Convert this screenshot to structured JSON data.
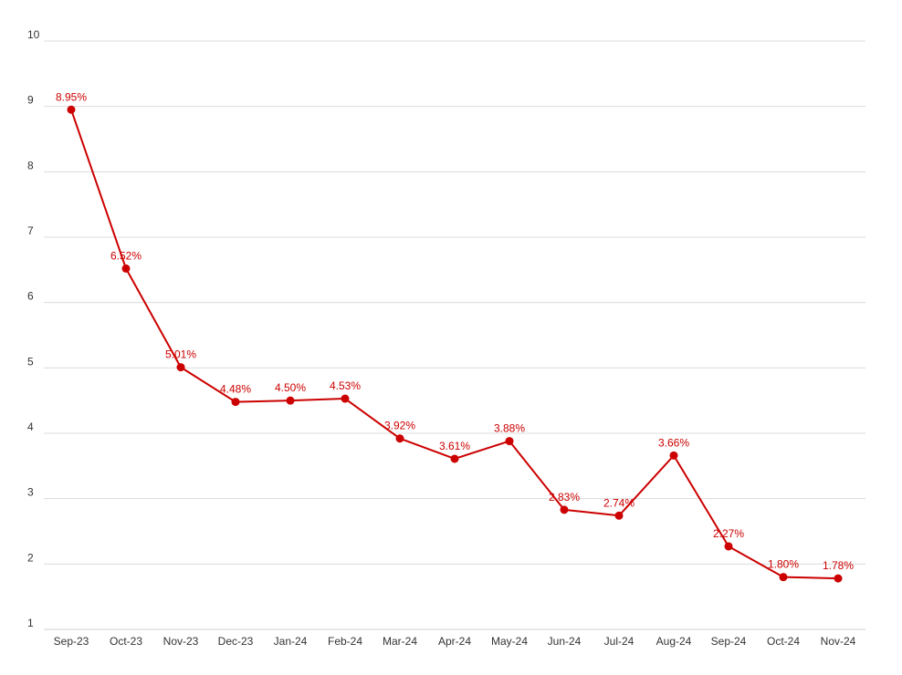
{
  "chart_data": {
    "type": "line",
    "title": "",
    "xlabel": "",
    "ylabel": "",
    "categories": [
      "Sep-23",
      "Oct-23",
      "Nov-23",
      "Dec-23",
      "Jan-24",
      "Feb-24",
      "Mar-24",
      "Apr-24",
      "May-24",
      "Jun-24",
      "Jul-24",
      "Aug-24",
      "Sep-24",
      "Oct-24",
      "Nov-24"
    ],
    "series": [
      {
        "values": [
          8.95,
          6.52,
          5.01,
          4.48,
          4.5,
          4.53,
          3.92,
          3.61,
          3.88,
          2.83,
          2.74,
          3.66,
          2.27,
          1.8,
          1.78
        ],
        "labels": [
          "8.95%",
          "6.52%",
          "5.01%",
          "4.48%",
          "4.50%",
          "4.53%",
          "3.92%",
          "3.61%",
          "3.88%",
          "2.83%",
          "2.74%",
          "3.66%",
          "2.27%",
          "1.80%",
          "1.78%"
        ],
        "color": "#cc0000"
      }
    ],
    "ylim": [
      1,
      10
    ],
    "yticks": [
      "1",
      "2",
      "3",
      "4",
      "5",
      "6",
      "7",
      "8",
      "9",
      "10"
    ],
    "grid": true,
    "legend": "none"
  }
}
